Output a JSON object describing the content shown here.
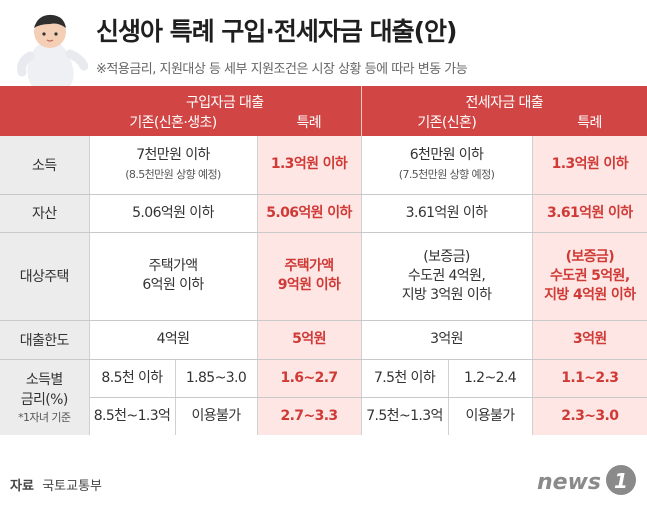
{
  "header": {
    "title": "신생아 특례 구입·전세자금 대출(안)",
    "subtitle": "※적용금리, 지원대상 등 세부 지원조건은 시장 상황 등에 따라 변동 가능"
  },
  "table": {
    "groups": [
      "구입자금 대출",
      "전세자금 대출"
    ],
    "subheaders": [
      "기존(신혼·생초)",
      "특례",
      "기존(신혼)",
      "특례"
    ],
    "rows": {
      "income": {
        "label": "소득",
        "c1": "7천만원 이하",
        "c1_note": "(8.5천만원 상향 예정)",
        "c2": "1.3억원 이하",
        "c3": "6천만원 이하",
        "c3_note": "(7.5천만원 상향 예정)",
        "c4": "1.3억원 이하"
      },
      "assets": {
        "label": "자산",
        "c1": "5.06억원 이하",
        "c2": "5.06억원 이하",
        "c3": "3.61억원 이하",
        "c4": "3.61억원 이하"
      },
      "housing": {
        "label": "대상주택",
        "c1_l1": "주택가액",
        "c1_l2": "6억원 이하",
        "c2_l1": "주택가액",
        "c2_l2": "9억원 이하",
        "c3_l1": "(보증금)",
        "c3_l2": "수도권 4억원,",
        "c3_l3": "지방 3억원 이하",
        "c4_l1": "(보증금)",
        "c4_l2": "수도권 5억원,",
        "c4_l3": "지방 4억원 이하"
      },
      "limit": {
        "label": "대출한도",
        "c1": "4억원",
        "c2": "5억원",
        "c3": "3억원",
        "c4": "3억원"
      },
      "rates": {
        "label_l1": "소득별",
        "label_l2": "금리(%)",
        "label_note": "*1자녀 기준",
        "r1": {
          "c1a": "8.5천 이하",
          "c1b": "1.85~3.0",
          "c2": "1.6~2.7",
          "c3a": "7.5천 이하",
          "c3b": "1.2~2.4",
          "c4": "1.1~2.3"
        },
        "r2": {
          "c1a": "8.5천~1.3억",
          "c1b": "이용불가",
          "c2": "2.7~3.3",
          "c3a": "7.5천~1.3억",
          "c3b": "이용불가",
          "c4": "2.3~3.0"
        }
      }
    }
  },
  "footer": {
    "source_label": "자료",
    "source_value": "국토교통부",
    "logo_text": "news",
    "logo_mark": "1"
  },
  "colors": {
    "accent": "#d24545",
    "highlight_bg": "#fde6e4",
    "highlight_text": "#d03a36"
  },
  "icons": {
    "illustration": "baby-figure"
  }
}
